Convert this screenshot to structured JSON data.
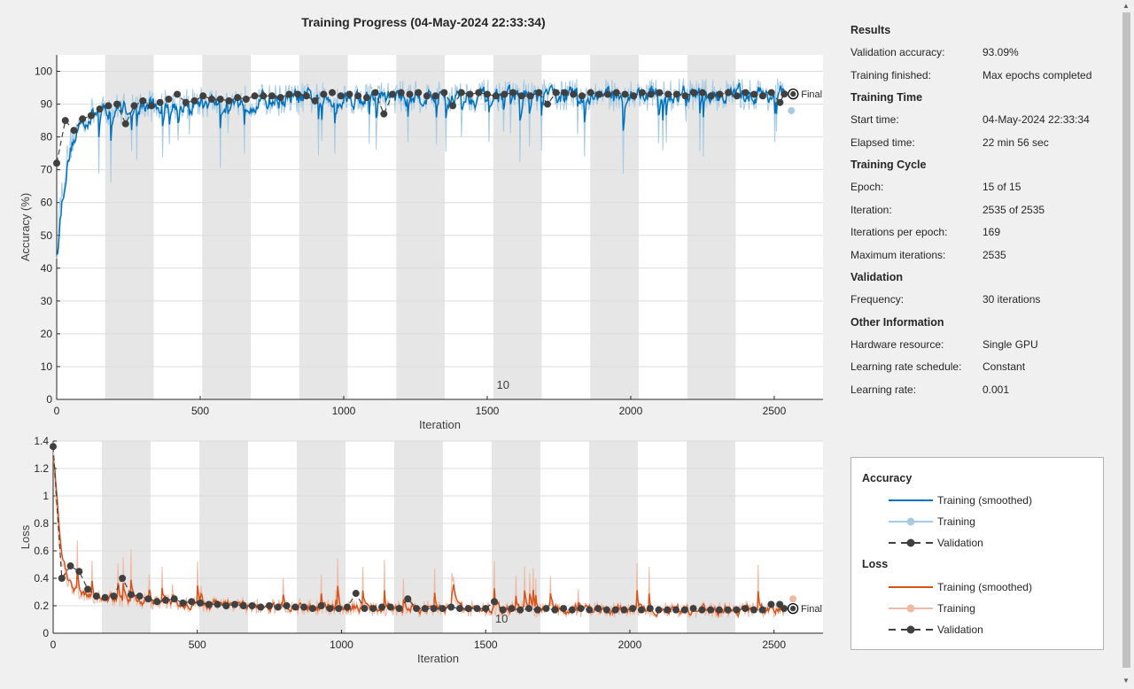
{
  "window": {
    "title": "Training Progress (04-May-2024 22:33:34)"
  },
  "colors": {
    "acc_smooth": "#0072bd",
    "acc_raw": "#a6cbe3",
    "loss_smooth": "#d95319",
    "loss_raw": "#efb9a3",
    "validation": "#404040",
    "epoch_shade": "#e6e6e6"
  },
  "results": {
    "sections": [
      {
        "heading": "Results",
        "rows": [
          {
            "label": "Validation accuracy:",
            "value": "93.09%"
          },
          {
            "label": "Training finished:",
            "value": "Max epochs completed"
          }
        ]
      },
      {
        "heading": "Training Time",
        "rows": [
          {
            "label": "Start time:",
            "value": "04-May-2024 22:33:34"
          },
          {
            "label": "Elapsed time:",
            "value": "22 min 56 sec"
          }
        ]
      },
      {
        "heading": "Training Cycle",
        "rows": [
          {
            "label": "Epoch:",
            "value": "15 of 15"
          },
          {
            "label": "Iteration:",
            "value": "2535 of 2535"
          },
          {
            "label": "Iterations per epoch:",
            "value": "169"
          },
          {
            "label": "Maximum iterations:",
            "value": "2535"
          }
        ]
      },
      {
        "heading": "Validation",
        "rows": [
          {
            "label": "Frequency:",
            "value": "30 iterations"
          }
        ]
      },
      {
        "heading": "Other Information",
        "rows": [
          {
            "label": "Hardware resource:",
            "value": "Single GPU"
          },
          {
            "label": "Learning rate schedule:",
            "value": "Constant"
          },
          {
            "label": "Learning rate:",
            "value": "0.001"
          }
        ]
      }
    ]
  },
  "legend": {
    "accuracy_heading": "Accuracy",
    "loss_heading": "Loss",
    "smoothed": "Training (smoothed)",
    "training": "Training",
    "validation": "Validation"
  },
  "chart_data": [
    {
      "type": "line",
      "xlabel": "Iteration",
      "ylabel": "Accuracy (%)",
      "xlim": [
        0,
        2670
      ],
      "ylim": [
        0,
        105
      ],
      "xticks": [
        0,
        500,
        1000,
        1500,
        2000,
        2500
      ],
      "yticks": [
        0,
        10,
        20,
        30,
        40,
        50,
        60,
        70,
        80,
        90,
        100
      ],
      "epoch_marker_label": "10",
      "final_label": "Final",
      "final_training": 88,
      "final_validation": 93.09,
      "validation_x": [
        0,
        30,
        60,
        90,
        120,
        150,
        180,
        210,
        240,
        270,
        300,
        330,
        360,
        390,
        420,
        450,
        480,
        510,
        540,
        570,
        600,
        630,
        660,
        690,
        720,
        750,
        780,
        810,
        840,
        870,
        900,
        930,
        960,
        990,
        1020,
        1050,
        1080,
        1110,
        1140,
        1170,
        1200,
        1230,
        1260,
        1290,
        1320,
        1350,
        1380,
        1410,
        1440,
        1470,
        1500,
        1530,
        1560,
        1590,
        1620,
        1650,
        1680,
        1710,
        1740,
        1770,
        1800,
        1830,
        1860,
        1890,
        1920,
        1950,
        1980,
        2010,
        2040,
        2070,
        2100,
        2130,
        2160,
        2190,
        2220,
        2250,
        2280,
        2310,
        2340,
        2370,
        2400,
        2430,
        2460,
        2490,
        2520,
        2535
      ],
      "validation_y": [
        72,
        85,
        82,
        85.5,
        86.5,
        88.5,
        89.5,
        90,
        84,
        89.5,
        91,
        89.5,
        90.5,
        91.5,
        93,
        90.5,
        91,
        92.5,
        91.5,
        91.5,
        91,
        92,
        91.5,
        92.5,
        92.5,
        92.5,
        92,
        93,
        93,
        92.5,
        91,
        93,
        93.5,
        92.5,
        93,
        92.5,
        92,
        93.5,
        87,
        93,
        93.5,
        93,
        93.5,
        92.5,
        92.5,
        93.5,
        89.5,
        93.5,
        93,
        93.5,
        93,
        92.5,
        93,
        93.5,
        92.5,
        92.5,
        93.5,
        90,
        93.5,
        93.5,
        93,
        92.5,
        93.5,
        93,
        93,
        93.5,
        93,
        92.5,
        93.5,
        93,
        93.5,
        93,
        93,
        92.5,
        93.5,
        93.5,
        92.5,
        93,
        93.5,
        92.5,
        93.5,
        93,
        92.5,
        93.5,
        90.5,
        93.09
      ]
    },
    {
      "type": "line",
      "xlabel": "Iteration",
      "ylabel": "Loss",
      "xlim": [
        0,
        2670
      ],
      "ylim": [
        0,
        1.4
      ],
      "xticks": [
        0,
        500,
        1000,
        1500,
        2000,
        2500
      ],
      "yticks": [
        0,
        0.2,
        0.4,
        0.6,
        0.8,
        1,
        1.2,
        1.4
      ],
      "epoch_marker_label": "10",
      "final_label": "Final",
      "final_validation": 0.18,
      "validation_x": [
        0,
        30,
        60,
        90,
        120,
        150,
        180,
        210,
        240,
        270,
        300,
        330,
        360,
        390,
        420,
        450,
        480,
        510,
        540,
        570,
        600,
        630,
        660,
        690,
        720,
        750,
        780,
        810,
        840,
        870,
        900,
        930,
        960,
        990,
        1020,
        1050,
        1080,
        1110,
        1140,
        1170,
        1200,
        1230,
        1260,
        1290,
        1320,
        1350,
        1380,
        1410,
        1440,
        1470,
        1500,
        1530,
        1560,
        1590,
        1620,
        1650,
        1680,
        1710,
        1740,
        1770,
        1800,
        1830,
        1860,
        1890,
        1920,
        1950,
        1980,
        2010,
        2040,
        2070,
        2100,
        2130,
        2160,
        2190,
        2220,
        2250,
        2280,
        2310,
        2340,
        2370,
        2400,
        2430,
        2460,
        2490,
        2520,
        2535
      ],
      "validation_y": [
        1.36,
        0.4,
        0.49,
        0.45,
        0.32,
        0.27,
        0.26,
        0.27,
        0.4,
        0.28,
        0.27,
        0.25,
        0.23,
        0.24,
        0.25,
        0.22,
        0.23,
        0.22,
        0.21,
        0.21,
        0.2,
        0.21,
        0.2,
        0.2,
        0.19,
        0.2,
        0.19,
        0.2,
        0.19,
        0.19,
        0.18,
        0.2,
        0.18,
        0.18,
        0.19,
        0.29,
        0.18,
        0.18,
        0.19,
        0.19,
        0.18,
        0.25,
        0.18,
        0.18,
        0.18,
        0.18,
        0.19,
        0.18,
        0.18,
        0.18,
        0.18,
        0.23,
        0.17,
        0.18,
        0.17,
        0.18,
        0.17,
        0.18,
        0.17,
        0.18,
        0.17,
        0.18,
        0.17,
        0.18,
        0.17,
        0.17,
        0.17,
        0.18,
        0.17,
        0.18,
        0.17,
        0.17,
        0.17,
        0.17,
        0.18,
        0.17,
        0.17,
        0.17,
        0.17,
        0.17,
        0.18,
        0.17,
        0.17,
        0.21,
        0.21,
        0.18
      ]
    }
  ]
}
